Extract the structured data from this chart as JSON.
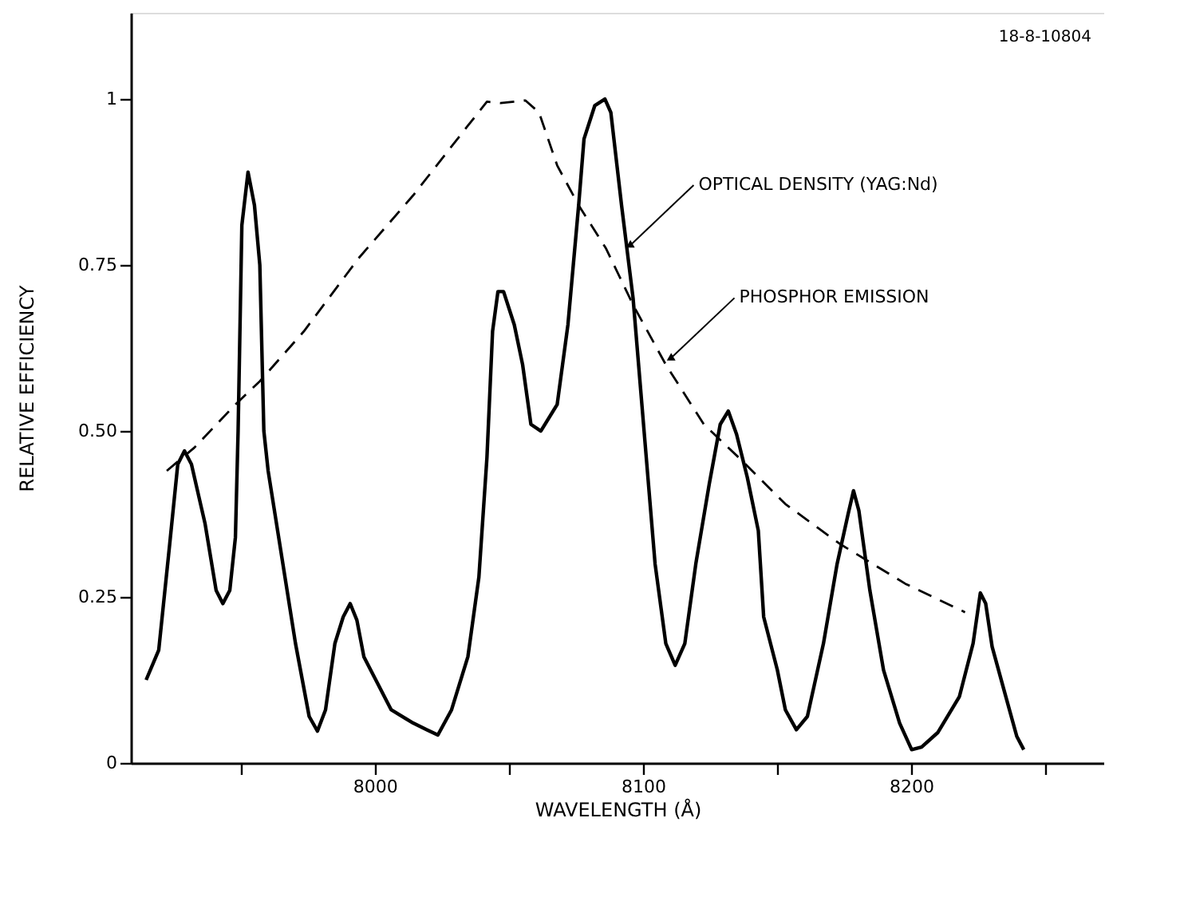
{
  "chart_data": {
    "type": "line",
    "xlabel": "WAVELENGTH (Å)",
    "ylabel": "RELATIVE EFFICIENCY",
    "xlim": [
      7909,
      8272
    ],
    "ylim": [
      0,
      1.13
    ],
    "xticks": [
      {
        "value": 7950,
        "label": null
      },
      8000,
      {
        "value": 8050,
        "label": null
      },
      8100,
      {
        "value": 8150,
        "label": null
      },
      8200,
      {
        "value": 8250,
        "label": null
      }
    ],
    "yticks": [
      0,
      0.25,
      {
        "value": 0.5,
        "label": "0.50"
      },
      0.75,
      1
    ],
    "grid": false,
    "marker": "none",
    "series": [
      {
        "color": "#000000",
        "line_style": "solid",
        "x": [
          7914.7,
          7919.4,
          7923.5,
          7926.5,
          7929,
          7931.6,
          7936.7,
          7940.8,
          7943.3,
          7945.9,
          7948,
          7949,
          7950.4,
          7952.7,
          7955.1,
          7957.1,
          7958.6,
          7960.2,
          7965.3,
          7970.4,
          7975.5,
          7978.6,
          7981.6,
          7985.1,
          7988.2,
          7990.8,
          7993.3,
          7995.9,
          8001,
          8006.1,
          8014.3,
          8019.4,
          8023.5,
          8028.6,
          8034.7,
          8038.8,
          8041.8,
          8043.9,
          8045.9,
          8048,
          8052,
          8055.1,
          8058.2,
          8061.9,
          8068,
          8072,
          8076,
          8078,
          8082,
          8085.8,
          8088,
          8092,
          8096.3,
          8100.4,
          8104.5,
          8108.5,
          8112,
          8115.6,
          8119.7,
          8124.7,
          8128.8,
          8131.8,
          8134.9,
          8138.9,
          8143,
          8145,
          8150.1,
          8153.1,
          8157.2,
          8161.3,
          8167.3,
          8172.4,
          8176.5,
          8178.5,
          8180.5,
          8184.6,
          8189.7,
          8195.7,
          8200.2,
          8203.9,
          8210,
          8218,
          8223.1,
          8225.8,
          8227.8,
          8230.2,
          8235.3,
          8239.4,
          8242
        ],
        "values": [
          0.125,
          0.17,
          0.33,
          0.45,
          0.47,
          0.45,
          0.36,
          0.26,
          0.24,
          0.26,
          0.34,
          0.5,
          0.81,
          0.89,
          0.84,
          0.75,
          0.5,
          0.44,
          0.31,
          0.18,
          0.07,
          0.048,
          0.08,
          0.18,
          0.22,
          0.24,
          0.215,
          0.16,
          0.12,
          0.08,
          0.06,
          0.05,
          0.042,
          0.08,
          0.16,
          0.28,
          0.46,
          0.65,
          0.71,
          0.71,
          0.66,
          0.6,
          0.51,
          0.5,
          0.54,
          0.66,
          0.84,
          0.94,
          0.99,
          1.0,
          0.98,
          0.84,
          0.7,
          0.5,
          0.3,
          0.18,
          0.147,
          0.18,
          0.3,
          0.42,
          0.51,
          0.53,
          0.495,
          0.43,
          0.35,
          0.22,
          0.14,
          0.08,
          0.05,
          0.07,
          0.18,
          0.3,
          0.375,
          0.41,
          0.38,
          0.26,
          0.14,
          0.06,
          0.02,
          0.024,
          0.046,
          0.1,
          0.18,
          0.256,
          0.24,
          0.175,
          0.1,
          0.04,
          0.02
        ]
      },
      {
        "color": "#000000",
        "line_style": "dashed",
        "x": [
          7922.4,
          7932.7,
          7948,
          7957.1,
          7973.5,
          7993.9,
          8014.3,
          8034.7,
          8041.8,
          8046.9,
          8056.1,
          8061.2,
          8068,
          8076,
          8086.2,
          8096.3,
          8108.5,
          8122.7,
          8137,
          8153.1,
          8173.4,
          8197.8,
          8220.1
        ],
        "values": [
          0.44,
          0.475,
          0.54,
          0.575,
          0.65,
          0.76,
          0.855,
          0.96,
          0.996,
          0.994,
          0.998,
          0.98,
          0.9,
          0.84,
          0.775,
          0.69,
          0.6,
          0.51,
          0.455,
          0.39,
          0.33,
          0.27,
          0.227
        ]
      }
    ],
    "annotations": [
      {
        "text": "OPTICAL DENSITY (YAG:Nd)",
        "x": 8095.3,
        "y": 0.78
      },
      {
        "text": "PHOSPHOR EMISSION",
        "x": 8110.5,
        "y": 0.61
      },
      "18-8-10804"
    ]
  }
}
